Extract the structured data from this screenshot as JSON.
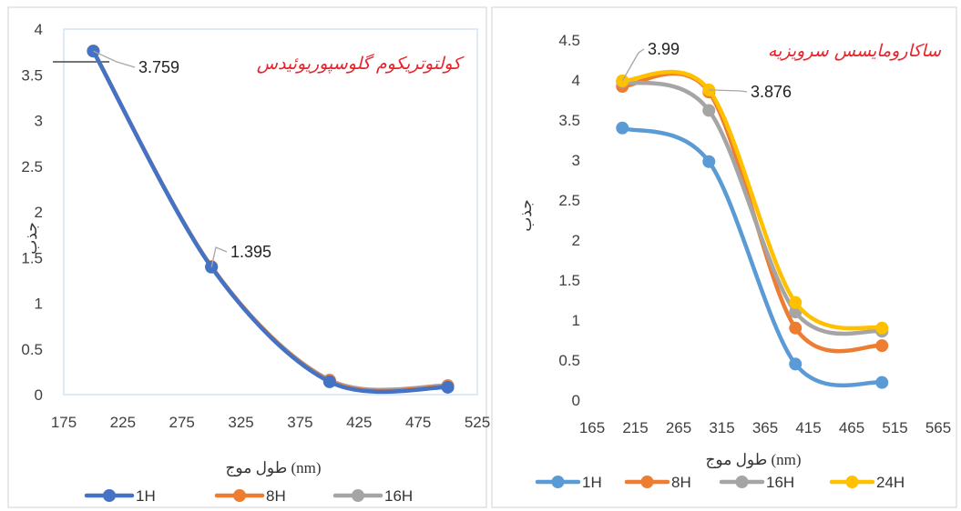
{
  "chart_data": [
    {
      "type": "line",
      "title": "کولتوتریکوم گلوسپوریوئیدس",
      "xlabel": "طول موج (nm)",
      "ylabel": "جذب",
      "xlim": [
        175,
        525
      ],
      "ylim": [
        0,
        4
      ],
      "xticks": [
        "175",
        "225",
        "275",
        "325",
        "375",
        "425",
        "475",
        "525"
      ],
      "yticks": [
        "0",
        "0.5",
        "1",
        "1.5",
        "2",
        "2.5",
        "3",
        "3.5",
        "4"
      ],
      "x": [
        200,
        300,
        400,
        500
      ],
      "series": [
        {
          "name": "16H",
          "color": "#a5a5a5",
          "values": [
            3.76,
            1.4,
            0.16,
            0.1
          ]
        },
        {
          "name": "8H",
          "color": "#ed7d31",
          "values": [
            3.76,
            1.4,
            0.15,
            0.09
          ]
        },
        {
          "name": "1H",
          "color": "#4472c4",
          "values": [
            3.759,
            1.395,
            0.14,
            0.08
          ]
        }
      ],
      "annotations": [
        {
          "text": "3.759",
          "x": 200,
          "y": 3.759
        },
        {
          "text": "1.395",
          "x": 300,
          "y": 1.395
        }
      ],
      "legend": [
        "1H",
        "8H",
        "16H"
      ],
      "legend_position": "bottom",
      "grid": false
    },
    {
      "type": "line",
      "title": "ساکارومایسس سرویزیه",
      "xlabel": "طول موج (nm)",
      "ylabel": "جذب",
      "xlim": [
        165,
        565
      ],
      "ylim": [
        0,
        4.5
      ],
      "xticks": [
        "165",
        "215",
        "265",
        "315",
        "365",
        "415",
        "465",
        "515",
        "565"
      ],
      "yticks": [
        "0",
        "0.5",
        "1",
        "1.5",
        "2",
        "2.5",
        "3",
        "3.5",
        "4",
        "4.5"
      ],
      "x": [
        200,
        300,
        400,
        500
      ],
      "series": [
        {
          "name": "1H",
          "color": "#5b9bd5",
          "values": [
            3.4,
            2.98,
            0.45,
            0.22
          ]
        },
        {
          "name": "8H",
          "color": "#ed7d31",
          "values": [
            3.92,
            3.85,
            0.9,
            0.68
          ]
        },
        {
          "name": "16H",
          "color": "#a5a5a5",
          "values": [
            3.98,
            3.62,
            1.1,
            0.86
          ]
        },
        {
          "name": "24H",
          "color": "#ffc000",
          "values": [
            3.99,
            3.876,
            1.22,
            0.9
          ]
        }
      ],
      "annotations": [
        {
          "text": "3.99",
          "x": 200,
          "y": 3.99
        },
        {
          "text": "3.876",
          "x": 300,
          "y": 3.876
        }
      ],
      "legend": [
        "1H",
        "8H",
        "16H",
        "24H"
      ],
      "legend_position": "bottom",
      "grid": false
    }
  ]
}
